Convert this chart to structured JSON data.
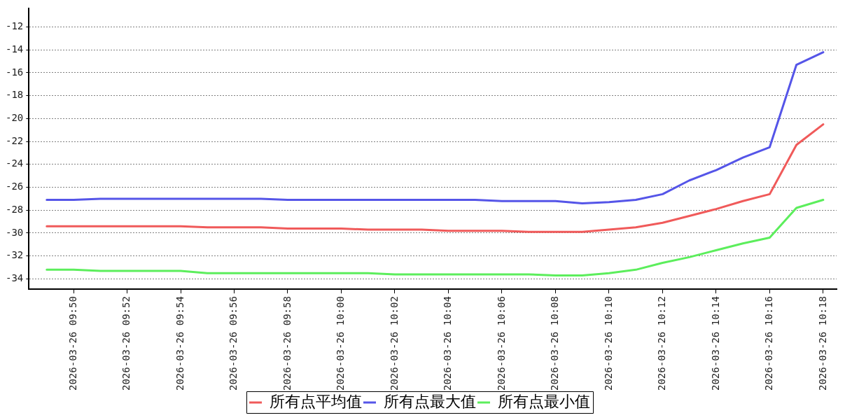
{
  "chart_data": {
    "type": "line",
    "x": [
      "2026-03-26T09:49",
      "2026-03-26T09:50",
      "2026-03-26T09:51",
      "2026-03-26T09:52",
      "2026-03-26T09:53",
      "2026-03-26T09:54",
      "2026-03-26T09:55",
      "2026-03-26T09:56",
      "2026-03-26T09:57",
      "2026-03-26T09:58",
      "2026-03-26T09:59",
      "2026-03-26T10:00",
      "2026-03-26T10:01",
      "2026-03-26T10:02",
      "2026-03-26T10:03",
      "2026-03-26T10:04",
      "2026-03-26T10:05",
      "2026-03-26T10:06",
      "2026-03-26T10:07",
      "2026-03-26T10:08",
      "2026-03-26T10:09",
      "2026-03-26T10:10",
      "2026-03-26T10:11",
      "2026-03-26T10:12",
      "2026-03-26T10:13",
      "2026-03-26T10:14",
      "2026-03-26T10:15",
      "2026-03-26T10:16",
      "2026-03-26T10:17",
      "2026-03-26T10:18"
    ],
    "series": [
      {
        "name": "所有点平均值",
        "color": "#f05a5a",
        "values": [
          -29.4,
          -29.4,
          -29.4,
          -29.4,
          -29.4,
          -29.4,
          -29.5,
          -29.5,
          -29.5,
          -29.6,
          -29.6,
          -29.6,
          -29.7,
          -29.7,
          -29.7,
          -29.8,
          -29.8,
          -29.8,
          -29.9,
          -29.9,
          -29.9,
          -29.7,
          -29.5,
          -29.1,
          -28.5,
          -27.9,
          -27.2,
          -26.6,
          -22.3,
          -20.5
        ]
      },
      {
        "name": "所有点最大值",
        "color": "#5555e8",
        "values": [
          -27.1,
          -27.1,
          -27.0,
          -27.0,
          -27.0,
          -27.0,
          -27.0,
          -27.0,
          -27.0,
          -27.1,
          -27.1,
          -27.1,
          -27.1,
          -27.1,
          -27.1,
          -27.1,
          -27.1,
          -27.2,
          -27.2,
          -27.2,
          -27.4,
          -27.3,
          -27.1,
          -26.6,
          -25.4,
          -24.5,
          -23.4,
          -22.5,
          -15.3,
          -14.2
        ]
      },
      {
        "name": "所有点最小值",
        "color": "#5cee5c",
        "values": [
          -33.2,
          -33.2,
          -33.3,
          -33.3,
          -33.3,
          -33.3,
          -33.5,
          -33.5,
          -33.5,
          -33.5,
          -33.5,
          -33.5,
          -33.5,
          -33.6,
          -33.6,
          -33.6,
          -33.6,
          -33.6,
          -33.6,
          -33.7,
          -33.7,
          -33.5,
          -33.2,
          -32.6,
          -32.1,
          -31.5,
          -30.9,
          -30.4,
          -27.8,
          -27.1
        ]
      }
    ],
    "xlim": [
      "2026-03-26T09:48:20",
      "2026-03-26T10:18:30"
    ],
    "xticks": [
      {
        "value": "2026-03-26T09:50",
        "label": "2026-03-26 09:50"
      },
      {
        "value": "2026-03-26T09:52",
        "label": "2026-03-26 09:52"
      },
      {
        "value": "2026-03-26T09:54",
        "label": "2026-03-26 09:54"
      },
      {
        "value": "2026-03-26T09:56",
        "label": "2026-03-26 09:56"
      },
      {
        "value": "2026-03-26T09:58",
        "label": "2026-03-26 09:58"
      },
      {
        "value": "2026-03-26T10:00",
        "label": "2026-03-26 10:00"
      },
      {
        "value": "2026-03-26T10:02",
        "label": "2026-03-26 10:02"
      },
      {
        "value": "2026-03-26T10:04",
        "label": "2026-03-26 10:04"
      },
      {
        "value": "2026-03-26T10:06",
        "label": "2026-03-26 10:06"
      },
      {
        "value": "2026-03-26T10:08",
        "label": "2026-03-26 10:08"
      },
      {
        "value": "2026-03-26T10:10",
        "label": "2026-03-26 10:10"
      },
      {
        "value": "2026-03-26T10:12",
        "label": "2026-03-26 10:12"
      },
      {
        "value": "2026-03-26T10:14",
        "label": "2026-03-26 10:14"
      },
      {
        "value": "2026-03-26T10:16",
        "label": "2026-03-26 10:16"
      },
      {
        "value": "2026-03-26T10:18",
        "label": "2026-03-26 10:18"
      }
    ],
    "ylim": [
      -34.9,
      -10.4
    ],
    "yticks": [
      -34,
      -32,
      -30,
      -28,
      -26,
      -24,
      -22,
      -20,
      -18,
      -16,
      -14,
      -12
    ],
    "grid": "y",
    "legend": "bottom",
    "marker": "none"
  }
}
